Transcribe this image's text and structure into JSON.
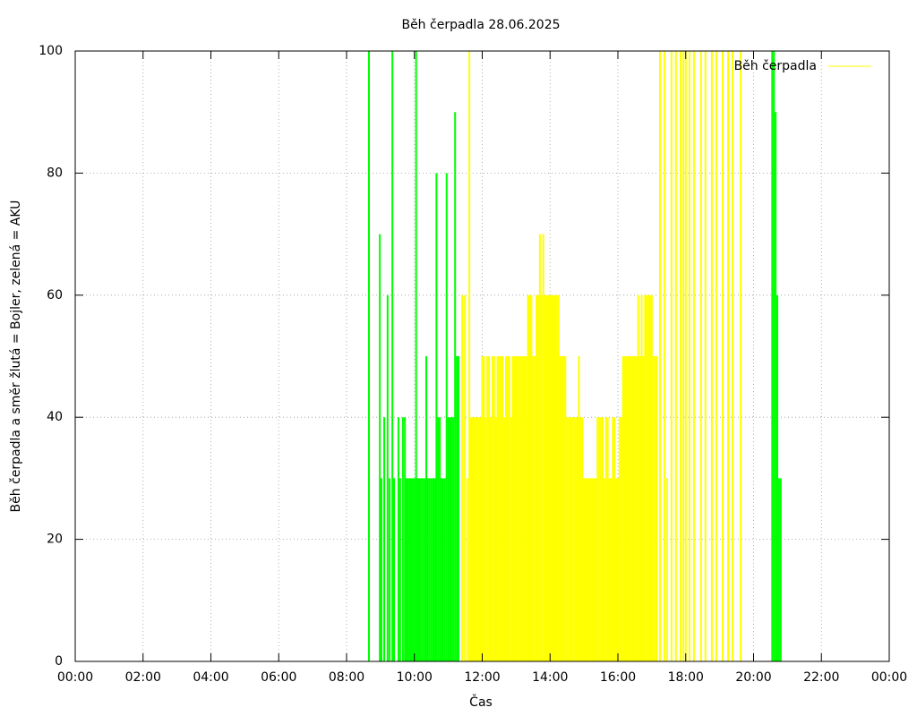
{
  "chart_data": {
    "type": "impulse",
    "title": "Běh čerpadla 28.06.2025",
    "xlabel": "Čas",
    "ylabel": "Běh čerpadla a směr žlutá = Bojler, zelená = AKU",
    "xlim": [
      0,
      24
    ],
    "xticks": [
      {
        "value": 0,
        "label": "00:00"
      },
      {
        "value": 2,
        "label": "02:00"
      },
      {
        "value": 4,
        "label": "04:00"
      },
      {
        "value": 6,
        "label": "06:00"
      },
      {
        "value": 8,
        "label": "08:00"
      },
      {
        "value": 10,
        "label": "10:00"
      },
      {
        "value": 12,
        "label": "12:00"
      },
      {
        "value": 14,
        "label": "14:00"
      },
      {
        "value": 16,
        "label": "16:00"
      },
      {
        "value": 18,
        "label": "18:00"
      },
      {
        "value": 20,
        "label": "20:00"
      },
      {
        "value": 22,
        "label": "22:00"
      },
      {
        "value": 24,
        "label": "00:00"
      }
    ],
    "ylim": [
      0,
      100
    ],
    "yticks": [
      0,
      20,
      40,
      60,
      80,
      100
    ],
    "grid": true,
    "legend": "top-right",
    "series": [
      {
        "name": "Běh čerpadla",
        "color": "#ffff00",
        "x": [
          11.41,
          11.49,
          11.56,
          11.62,
          11.66,
          11.7,
          11.75,
          11.8,
          11.85,
          11.9,
          11.95,
          12.0,
          12.05,
          12.1,
          12.15,
          12.2,
          12.25,
          12.3,
          12.35,
          12.4,
          12.45,
          12.5,
          12.55,
          12.6,
          12.65,
          12.7,
          12.75,
          12.8,
          12.85,
          12.9,
          12.95,
          13.0,
          13.05,
          13.1,
          13.15,
          13.2,
          13.25,
          13.3,
          13.35,
          13.4,
          13.45,
          13.5,
          13.55,
          13.6,
          13.65,
          13.7,
          13.75,
          13.8,
          13.85,
          13.9,
          13.95,
          14.0,
          14.05,
          14.1,
          14.15,
          14.2,
          14.25,
          14.3,
          14.35,
          14.4,
          14.45,
          14.5,
          14.55,
          14.6,
          14.65,
          14.7,
          14.75,
          14.8,
          14.85,
          14.9,
          14.95,
          15.0,
          15.05,
          15.1,
          15.15,
          15.2,
          15.25,
          15.3,
          15.35,
          15.4,
          15.45,
          15.5,
          15.55,
          15.6,
          15.65,
          15.7,
          15.75,
          15.8,
          15.85,
          15.9,
          15.95,
          16.0,
          16.05,
          16.1,
          16.15,
          16.2,
          16.25,
          16.3,
          16.35,
          16.4,
          16.45,
          16.5,
          16.55,
          16.6,
          16.65,
          16.7,
          16.75,
          16.8,
          16.85,
          16.9,
          16.95,
          17.0,
          17.05,
          17.1,
          17.15,
          17.24,
          17.37,
          17.45,
          17.58,
          17.71,
          17.85,
          17.93,
          18.0,
          18.11,
          18.24,
          18.45,
          18.58,
          18.77,
          18.9,
          19.09,
          19.25,
          19.38,
          19.62
        ],
        "values": [
          60,
          60,
          30,
          100,
          40,
          40,
          40,
          40,
          40,
          40,
          40,
          50,
          50,
          40,
          50,
          50,
          40,
          50,
          50,
          40,
          50,
          50,
          50,
          50,
          40,
          50,
          50,
          50,
          40,
          50,
          50,
          50,
          50,
          50,
          50,
          50,
          50,
          50,
          60,
          60,
          60,
          50,
          50,
          60,
          60,
          70,
          60,
          70,
          60,
          60,
          60,
          60,
          60,
          60,
          60,
          60,
          60,
          50,
          50,
          50,
          50,
          40,
          40,
          40,
          40,
          40,
          40,
          40,
          50,
          40,
          40,
          30,
          30,
          30,
          30,
          30,
          30,
          30,
          30,
          40,
          40,
          40,
          40,
          30,
          40,
          40,
          30,
          30,
          40,
          40,
          30,
          30,
          40,
          40,
          50,
          50,
          50,
          50,
          50,
          50,
          50,
          50,
          50,
          60,
          50,
          60,
          50,
          60,
          60,
          60,
          60,
          60,
          50,
          50,
          50,
          100,
          100,
          30,
          100,
          100,
          100,
          100,
          100,
          100,
          100,
          100,
          100,
          100,
          100,
          100,
          100,
          100,
          100
        ]
      },
      {
        "color": "#00ff00",
        "x": [
          8.66,
          8.98,
          9.03,
          9.11,
          9.21,
          9.27,
          9.35,
          9.4,
          9.53,
          9.58,
          9.66,
          9.72,
          9.77,
          9.8,
          9.85,
          9.9,
          9.95,
          10.0,
          10.05,
          10.1,
          10.15,
          10.2,
          10.25,
          10.3,
          10.35,
          10.4,
          10.45,
          10.5,
          10.55,
          10.6,
          10.65,
          10.7,
          10.75,
          10.8,
          10.85,
          10.9,
          10.95,
          11.0,
          11.05,
          11.1,
          11.15,
          11.2,
          11.25,
          11.3,
          20.55,
          20.6,
          20.65,
          20.7,
          20.75,
          20.8
        ],
        "values": [
          100,
          70,
          30,
          40,
          60,
          30,
          100,
          30,
          40,
          30,
          40,
          40,
          30,
          30,
          30,
          30,
          30,
          30,
          100,
          30,
          30,
          30,
          30,
          30,
          50,
          30,
          30,
          30,
          30,
          30,
          80,
          40,
          40,
          30,
          30,
          30,
          80,
          40,
          40,
          40,
          40,
          90,
          50,
          50,
          100,
          100,
          90,
          60,
          30,
          30
        ]
      }
    ]
  }
}
